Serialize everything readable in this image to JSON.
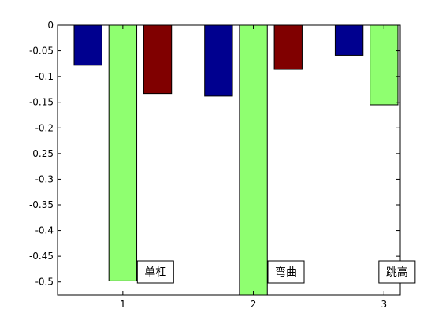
{
  "chart_data": {
    "type": "bar",
    "categories": [
      "1",
      "2",
      "3"
    ],
    "series": [
      {
        "color": "#00008f",
        "values": [
          -0.078,
          -0.138,
          -0.059
        ]
      },
      {
        "color": "#8fff70",
        "values": [
          -0.498,
          -0.53,
          -0.155
        ]
      },
      {
        "color": "#800000",
        "values": [
          -0.133,
          -0.086,
          -0.006
        ]
      }
    ],
    "ylim": [
      -0.525,
      0
    ],
    "yticks": [
      0,
      -0.05,
      -0.1,
      -0.15,
      -0.2,
      -0.25,
      -0.3,
      -0.35,
      -0.4,
      -0.45,
      -0.5
    ],
    "ytick_labels": [
      "0",
      "-0.05",
      "-0.1",
      "-0.15",
      "-0.2",
      "-0.25",
      "-0.3",
      "-0.35",
      "-0.4",
      "-0.45",
      "-0.5"
    ],
    "annotations": [
      {
        "text": "单杠",
        "category_index": 0
      },
      {
        "text": "弯曲",
        "category_index": 1
      },
      {
        "text": "跳高",
        "category_index": 2
      }
    ],
    "grid": false,
    "legend": "none"
  }
}
